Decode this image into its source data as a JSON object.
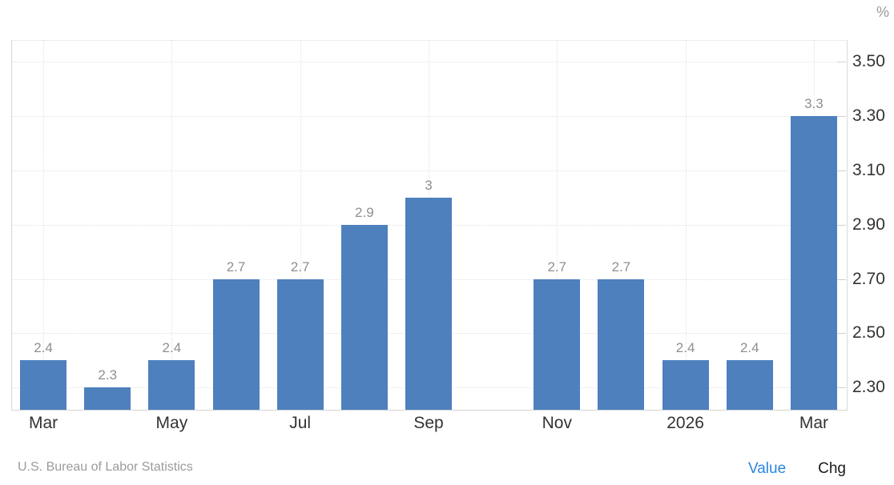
{
  "chart_data": {
    "type": "bar",
    "bar_color": "#4d80bd",
    "n_slots": 13,
    "points": [
      {
        "slot": 0,
        "value": 2.4,
        "label": "2.4"
      },
      {
        "slot": 1,
        "value": 2.3,
        "label": "2.3"
      },
      {
        "slot": 2,
        "value": 2.4,
        "label": "2.4"
      },
      {
        "slot": 3,
        "value": 2.7,
        "label": "2.7"
      },
      {
        "slot": 4,
        "value": 2.7,
        "label": "2.7"
      },
      {
        "slot": 5,
        "value": 2.9,
        "label": "2.9"
      },
      {
        "slot": 6,
        "value": 3,
        "label": "3"
      },
      {
        "slot": 7,
        "value": null,
        "label": ""
      },
      {
        "slot": 8,
        "value": 2.7,
        "label": "2.7"
      },
      {
        "slot": 9,
        "value": 2.7,
        "label": "2.7"
      },
      {
        "slot": 10,
        "value": 2.4,
        "label": "2.4"
      },
      {
        "slot": 11,
        "value": 2.4,
        "label": "2.4"
      },
      {
        "slot": 12,
        "value": 3.3,
        "label": "3.3"
      }
    ],
    "x_axis": {
      "tick_labels": [
        "Mar",
        "May",
        "Jul",
        "Sep",
        "Nov",
        "2026",
        "Mar"
      ],
      "tick_slots": [
        0,
        2,
        4,
        6,
        8,
        10,
        12
      ]
    },
    "y_axis": {
      "unit": "%",
      "side": "right",
      "tick_labels": [
        "2.30",
        "2.50",
        "2.70",
        "2.90",
        "3.10",
        "3.30",
        "3.50"
      ],
      "tick_values": [
        2.3,
        2.5,
        2.7,
        2.9,
        3.1,
        3.3,
        3.5
      ],
      "min": 2.218,
      "max": 3.58
    },
    "grid": {
      "style": "dotted",
      "horizontal": true,
      "vertical": true
    },
    "legend_position": "bottom-right"
  },
  "footer": {
    "source": "U.S. Bureau of Labor Statistics",
    "value_label": "Value",
    "value_color": "#2b86e0",
    "chg_label": "Chg"
  }
}
